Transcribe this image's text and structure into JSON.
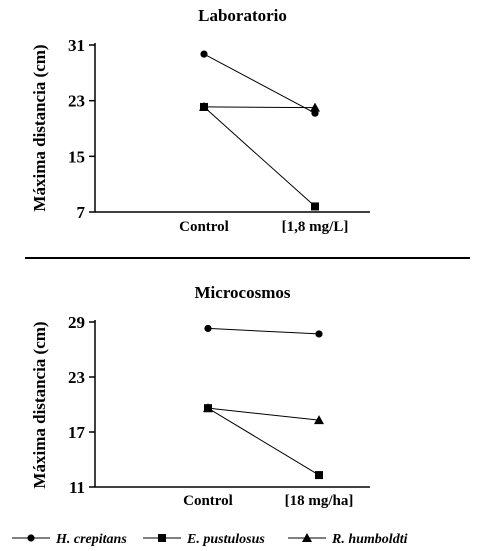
{
  "chart_data": [
    {
      "type": "line",
      "title": "Laboratorio",
      "ylabel": "Máxima distancia (cm)",
      "xlabel": "",
      "categories": [
        "Control",
        "[1,8 mg/L]"
      ],
      "ylim": [
        7,
        31
      ],
      "yticks": [
        7,
        15,
        23,
        31
      ],
      "grid": false,
      "series": [
        {
          "name": "H. crepitans",
          "marker": "circle",
          "values": [
            29.7,
            21.2
          ]
        },
        {
          "name": "E. pustulosus",
          "marker": "square",
          "values": [
            22.1,
            7.8
          ]
        },
        {
          "name": "R. humboldti",
          "marker": "triangle",
          "values": [
            22.1,
            22.0
          ]
        }
      ]
    },
    {
      "type": "line",
      "title": "Microcosmos",
      "ylabel": "Máxima distancia (cm)",
      "xlabel": "",
      "categories": [
        "Control",
        "[18 mg/ha]"
      ],
      "ylim": [
        11,
        29
      ],
      "yticks": [
        11,
        17,
        23,
        29
      ],
      "grid": false,
      "series": [
        {
          "name": "H. crepitans",
          "marker": "circle",
          "values": [
            28.3,
            27.7
          ]
        },
        {
          "name": "E. pustulosus",
          "marker": "square",
          "values": [
            19.6,
            12.3
          ]
        },
        {
          "name": "R. humboldti",
          "marker": "triangle",
          "values": [
            19.6,
            18.3
          ]
        }
      ]
    }
  ],
  "legend": {
    "placement": "bottom",
    "items": [
      {
        "label": "H. crepitans",
        "marker": "circle"
      },
      {
        "label": "E. pustulosus",
        "marker": "square"
      },
      {
        "label": "R. humboldti",
        "marker": "triangle"
      }
    ]
  }
}
